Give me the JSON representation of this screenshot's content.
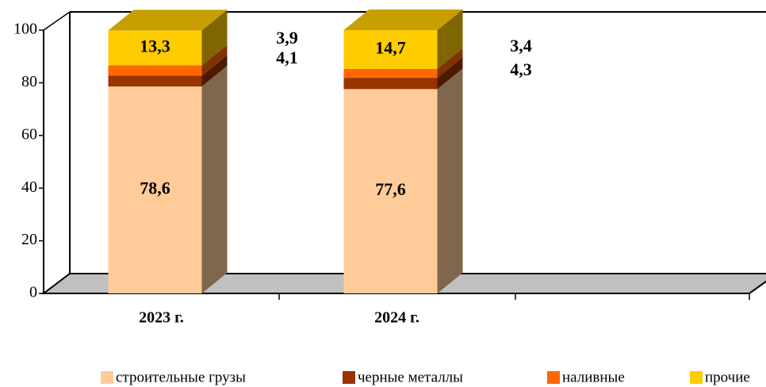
{
  "chart_data": {
    "type": "bar3d_stacked",
    "categories": [
      "2023 г.",
      "2024 г."
    ],
    "series": [
      {
        "name": "строительные грузы",
        "color": "#FFCC99",
        "values": [
          78.6,
          77.6
        ],
        "value_labels": [
          "78,6",
          "77,6"
        ]
      },
      {
        "name": "черные металлы",
        "color": "#993300",
        "values": [
          4.1,
          4.3
        ],
        "value_labels": [
          "4,1",
          "4,3"
        ]
      },
      {
        "name": "наливные",
        "color": "#FF6600",
        "values": [
          3.9,
          3.4
        ],
        "value_labels": [
          "3,9",
          "3,4"
        ]
      },
      {
        "name": "прочие",
        "color": "#FFCC00",
        "values": [
          13.3,
          14.7
        ],
        "value_labels": [
          "13,3",
          "14,7"
        ]
      }
    ],
    "ylim": [
      0,
      100
    ],
    "yticks": [
      0,
      20,
      40,
      60,
      80,
      100
    ]
  }
}
